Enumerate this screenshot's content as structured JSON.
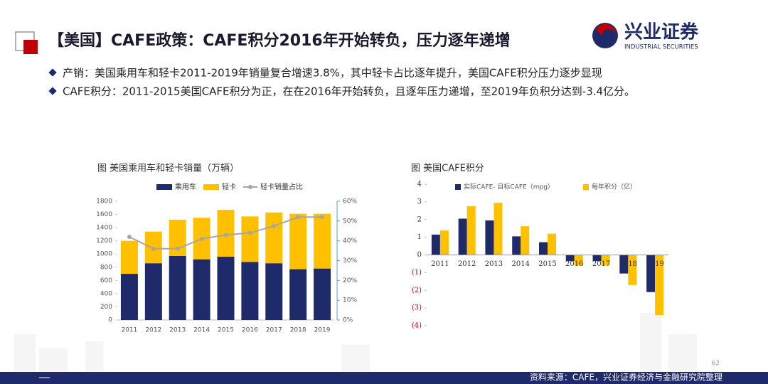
{
  "header": {
    "title": "【美国】CAFE政策：CAFE积分2016年开始转负，压力逐年递增",
    "logo_name": "兴业证券",
    "logo_sub": "INDUSTRIAL SECURITIES"
  },
  "bullets": [
    "产销：美国乘用车和轻卡2011-2019年销量复合增速3.8%，其中轻卡占比逐年提升，美国CAFE积分压力逐步显现",
    "CAFE积分：2011-2015美国CAFE积分为正，在在2016年开始转负，且逐年压力递增，至2019年负积分达到-3.4亿分。"
  ],
  "chart_data": [
    {
      "type": "bar",
      "stacked": true,
      "title": "图 美国乘用车和轻卡销量（万辆）",
      "categories": [
        "2011",
        "2012",
        "2013",
        "2014",
        "2015",
        "2016",
        "2017",
        "2018",
        "2019"
      ],
      "series": [
        {
          "name": "乘用车",
          "color": "#1f2a6b",
          "values": [
            700,
            860,
            970,
            920,
            960,
            880,
            860,
            770,
            780
          ]
        },
        {
          "name": "轻卡",
          "color": "#ffc000",
          "values": [
            500,
            480,
            550,
            630,
            710,
            690,
            770,
            840,
            830
          ]
        },
        {
          "name": "轻卡销量占比",
          "color": "#a6a6a6",
          "type": "line",
          "axis": "y2",
          "values": [
            42,
            36,
            36,
            41,
            43,
            44,
            47.5,
            52,
            52
          ]
        }
      ],
      "ylim": [
        0,
        1800
      ],
      "yticks": [
        0,
        200,
        400,
        600,
        800,
        1000,
        1200,
        1400,
        1600,
        1800
      ],
      "y2lim": [
        0,
        60
      ],
      "y2ticks": [
        {
          "value": 0,
          "label": "0%"
        },
        {
          "value": 10,
          "label": "10%"
        },
        {
          "value": 20,
          "label": "20%"
        },
        {
          "value": 30,
          "label": "30%"
        },
        {
          "value": 40,
          "label": "40%"
        },
        {
          "value": 50,
          "label": "50%"
        },
        {
          "value": 60,
          "label": "60%"
        }
      ]
    },
    {
      "type": "bar",
      "stacked": false,
      "title": "图 美国CAFE积分",
      "categories": [
        "2011",
        "2012",
        "2013",
        "2014",
        "2015",
        "2016",
        "2017",
        "2018",
        "2019"
      ],
      "series": [
        {
          "name": "实际CAFE- 目标CAFE（mpg）",
          "color": "#1f2a6b",
          "values": [
            1.15,
            2.05,
            1.95,
            1.05,
            0.72,
            -0.35,
            -0.35,
            -1.05,
            -2.1
          ]
        },
        {
          "name": "每年积分（亿）",
          "color": "#ffc000",
          "values": [
            1.38,
            2.75,
            2.95,
            1.62,
            1.2,
            -0.6,
            -0.6,
            -1.7,
            -3.4
          ]
        }
      ],
      "ylim": [
        -4,
        4
      ],
      "negative_tick_color": "#c00000",
      "yticks": [
        4,
        3,
        2,
        1,
        0,
        {
          "value": -1,
          "label": "(1)"
        },
        {
          "value": -2,
          "label": "(2)"
        },
        {
          "value": -3,
          "label": "(3)"
        },
        {
          "value": -4,
          "label": "(4)"
        }
      ]
    }
  ],
  "footer": {
    "source": "资料来源：CAFE，兴业证券经济与金融研究院整理",
    "page": "62"
  }
}
